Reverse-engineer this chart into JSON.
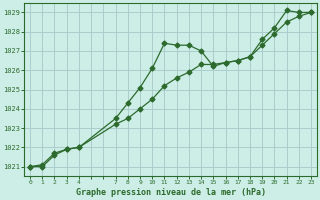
{
  "series1_x": [
    0,
    1,
    2,
    3,
    4,
    7,
    8,
    9,
    10,
    11,
    12,
    13,
    14,
    15,
    16,
    17,
    18,
    19,
    20,
    21,
    22,
    23
  ],
  "series1_y": [
    1021.0,
    1021.0,
    1021.6,
    1021.9,
    1022.0,
    1023.5,
    1024.3,
    1025.1,
    1026.1,
    1027.4,
    1027.3,
    1027.3,
    1027.0,
    1026.2,
    1026.4,
    1026.5,
    1026.7,
    1027.6,
    1028.2,
    1029.1,
    1029.0,
    1029.0
  ],
  "series2_x": [
    0,
    1,
    2,
    3,
    4,
    7,
    8,
    9,
    10,
    11,
    12,
    13,
    14,
    15,
    16,
    17,
    18,
    19,
    20,
    21,
    22,
    23
  ],
  "series2_y": [
    1021.0,
    1021.1,
    1021.7,
    1021.9,
    1022.0,
    1023.2,
    1023.5,
    1024.0,
    1024.5,
    1025.2,
    1025.6,
    1025.9,
    1026.3,
    1026.3,
    1026.4,
    1026.5,
    1026.7,
    1027.3,
    1027.9,
    1028.5,
    1028.8,
    1029.0
  ],
  "line_color": "#2d6a2d",
  "bg_color": "#cceee6",
  "grid_color": "#aacccc",
  "xlabel": "Graphe pression niveau de la mer (hPa)",
  "ylim_min": 1020.5,
  "ylim_max": 1029.5,
  "xlim_min": -0.5,
  "xlim_max": 23.5,
  "yticks": [
    1021,
    1022,
    1023,
    1024,
    1025,
    1026,
    1027,
    1028,
    1029
  ],
  "xticks_all": [
    0,
    1,
    2,
    3,
    4,
    5,
    6,
    7,
    8,
    9,
    10,
    11,
    12,
    13,
    14,
    15,
    16,
    17,
    18,
    19,
    20,
    21,
    22,
    23
  ],
  "xtick_labels": [
    "0",
    "1",
    "2",
    "3",
    "4",
    "",
    "",
    "7",
    "8",
    "9",
    "10",
    "11",
    "12",
    "13",
    "14",
    "15",
    "16",
    "17",
    "18",
    "19",
    "20",
    "21",
    "22",
    "23"
  ]
}
